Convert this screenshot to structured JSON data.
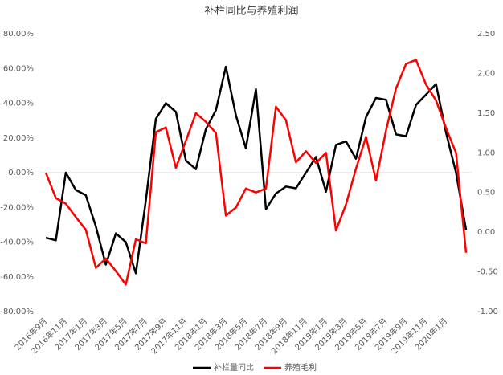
{
  "chart_data": {
    "type": "line",
    "title": "补栏同比与养殖利润",
    "categories": [
      "2016年9月",
      null,
      "2016年11月",
      null,
      "2017年1月",
      null,
      "2017年3月",
      null,
      "2017年5月",
      null,
      "2017年7月",
      null,
      "2017年9月",
      null,
      "2017年11月",
      null,
      "2018年1月",
      null,
      "2018年3月",
      null,
      "2018年5月",
      null,
      "2018年7月",
      null,
      "2018年9月",
      null,
      "2018年11月",
      null,
      "2019年1月",
      null,
      "2019年3月",
      null,
      "2019年5月",
      null,
      "2019年7月",
      null,
      "2019年9月",
      null,
      "2019年11月",
      null,
      "2020年1月",
      null,
      null
    ],
    "series": [
      {
        "name": "补栏量同比",
        "color": "#000000",
        "values": [
          -37.5,
          -39,
          0,
          -10,
          -13,
          -31,
          -53,
          -35,
          -40,
          -58,
          -16,
          31,
          40,
          35,
          7,
          2,
          25,
          36,
          61,
          33,
          14,
          48,
          -21,
          -12,
          -8,
          -9,
          0,
          9,
          -11,
          16,
          18,
          8,
          32,
          43,
          42,
          22,
          21,
          39,
          45,
          51,
          23,
          0,
          -33
        ]
      },
      {
        "name": "养殖毛利",
        "color": "#ff0000",
        "axis": "y2",
        "values": [
          0.75,
          0.43,
          0.36,
          0.19,
          0.03,
          -0.45,
          -0.33,
          -0.49,
          -0.66,
          -0.09,
          -0.14,
          1.26,
          1.32,
          0.81,
          1.15,
          1.5,
          1.39,
          1.25,
          0.21,
          0.31,
          0.55,
          0.5,
          0.55,
          1.58,
          1.41,
          0.88,
          1.02,
          0.87,
          1.0,
          0.02,
          0.35,
          0.8,
          1.2,
          0.65,
          1.28,
          1.81,
          2.12,
          2.17,
          1.86,
          1.66,
          1.31,
          1.0,
          -0.26
        ]
      }
    ],
    "ylim": [
      -80,
      80
    ],
    "yticks": [
      {
        "value": -80,
        "label": "-80.00%"
      },
      {
        "value": -60,
        "label": "-60.00%"
      },
      {
        "value": -40,
        "label": "-40.00%"
      },
      {
        "value": -20,
        "label": "-20.00%"
      },
      {
        "value": 0,
        "label": "0.00%"
      },
      {
        "value": 20,
        "label": "20.00%"
      },
      {
        "value": 40,
        "label": "40.00%"
      },
      {
        "value": 60,
        "label": "60.00%"
      },
      {
        "value": 80,
        "label": "80.00%"
      }
    ],
    "y2lim": [
      -1,
      2.5
    ],
    "y2ticks": [
      {
        "value": -1,
        "label": "-1.00"
      },
      {
        "value": -0.5,
        "label": "-0.50"
      },
      {
        "value": 0,
        "label": "0.00"
      },
      {
        "value": 0.5,
        "label": "0.50"
      },
      {
        "value": 1,
        "label": "1.00"
      },
      {
        "value": 1.5,
        "label": "1.50"
      },
      {
        "value": 2,
        "label": "2.00"
      },
      {
        "value": 2.5,
        "label": "2.50"
      }
    ],
    "legend": "bottom"
  }
}
